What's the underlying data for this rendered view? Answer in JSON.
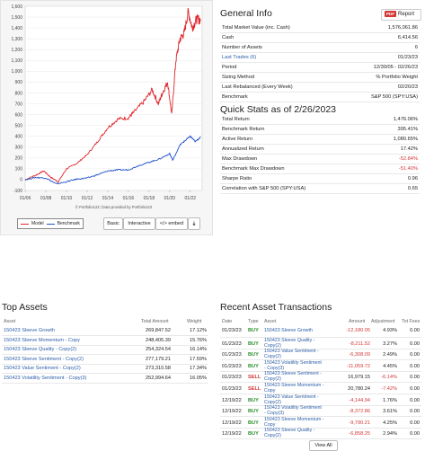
{
  "chart_data": {
    "type": "line",
    "x_ticks": [
      "01/06",
      "01/08",
      "01/10",
      "01/12",
      "01/14",
      "01/16",
      "01/18",
      "01/20",
      "01/22"
    ],
    "y_ticks": [
      "1,600",
      "1,500",
      "1,400",
      "1,300",
      "1,200",
      "1,100",
      "1,000",
      "900",
      "800",
      "700",
      "600",
      "500",
      "400",
      "300",
      "200",
      "100",
      "0",
      "-100"
    ],
    "ylim": [
      -100,
      1600
    ],
    "xlim": [
      2005.99,
      2023.15
    ],
    "series": [
      {
        "name": "Model",
        "color": "#e0262b",
        "x": [
          2006.0,
          2007.0,
          2007.8,
          2008.5,
          2009.2,
          2010.0,
          2011.0,
          2012.0,
          2013.0,
          2014.0,
          2015.0,
          2016.0,
          2016.5,
          2017.5,
          2018.3,
          2018.9,
          2019.3,
          2019.8,
          2020.2,
          2020.6,
          2021.0,
          2021.4,
          2021.8,
          2022.2,
          2022.6,
          2023.0
        ],
        "y": [
          0,
          40,
          80,
          20,
          -20,
          100,
          150,
          230,
          350,
          480,
          560,
          570,
          620,
          720,
          830,
          700,
          800,
          900,
          600,
          1100,
          1300,
          1350,
          1550,
          1400,
          1480,
          1476
        ]
      },
      {
        "name": "Benchmark",
        "color": "#2150c8",
        "x": [
          2006.0,
          2007.0,
          2008.0,
          2009.0,
          2010.0,
          2011.0,
          2012.0,
          2013.0,
          2014.0,
          2015.0,
          2016.0,
          2017.0,
          2018.0,
          2019.0,
          2020.0,
          2020.3,
          2021.0,
          2021.5,
          2022.0,
          2022.5,
          2023.0
        ],
        "y": [
          0,
          20,
          15,
          -40,
          -20,
          5,
          15,
          45,
          80,
          90,
          90,
          130,
          160,
          190,
          240,
          180,
          320,
          360,
          400,
          350,
          395
        ]
      }
    ],
    "credits": "© Portfolio123 | Data provided by Portfolio123"
  },
  "chart_ui": {
    "legend_model": "Model",
    "legend_benchmark": "Benchmark",
    "btn_basic": "Basic",
    "btn_interactive": "Interactive",
    "btn_embed": "</> embed",
    "btn_download": "⤓"
  },
  "general": {
    "title": "General Info",
    "pdf_badge": "PDF",
    "pdf_label": "Report",
    "rows": [
      {
        "k": "Total Market Value (inc. Cash)",
        "v": "1,576,061.86"
      },
      {
        "k": "Cash",
        "v": "6,414.56"
      },
      {
        "k": "Number of Assets",
        "v": "6"
      },
      {
        "k": "Last Trades (6)",
        "v": "01/23/23",
        "link": true
      },
      {
        "k": "Period",
        "v": "12/30/05 - 02/26/23"
      },
      {
        "k": "Sizing Method",
        "v": "% Portfolio Weight"
      },
      {
        "k": "Last Rebalanced (Every Week)",
        "v": "02/20/23"
      },
      {
        "k": "Benchmark",
        "v": "S&P 500 (SPY:USA)"
      }
    ]
  },
  "quick": {
    "title": "Quick Stats as of 2/26/2023",
    "rows": [
      {
        "k": "Total Return",
        "v": "1,476.06%"
      },
      {
        "k": "Benchmark Return",
        "v": "395.41%"
      },
      {
        "k": "Active Return",
        "v": "1,080.65%"
      },
      {
        "k": "Annualized Return",
        "v": "17.42%"
      },
      {
        "k": "Max Drawdown",
        "v": "-52.84%",
        "neg": true
      },
      {
        "k": "Benchmark Max Drawdown",
        "v": "-51.40%",
        "neg": true
      },
      {
        "k": "Sharpe Ratio",
        "v": "0.96"
      },
      {
        "k": "Correlation with S&P 500 (SPY:USA)",
        "v": "0.65"
      }
    ]
  },
  "assets": {
    "title": "Top Assets",
    "headers": {
      "asset": "Asset",
      "amount": "Total Amount",
      "weight": "Weight"
    },
    "rows": [
      {
        "asset": "150423 Sleeve Growth",
        "amount": "269,847.52",
        "weight": "17.12%"
      },
      {
        "asset": "150423 Sleeve Momentum - Copy",
        "amount": "248,405.39",
        "weight": "15.76%"
      },
      {
        "asset": "150423 Sleeve Quality - Copy(2)",
        "amount": "254,324.54",
        "weight": "16.14%"
      },
      {
        "asset": "150423 Sleeve Sentiment - Copy(2)",
        "amount": "277,179.21",
        "weight": "17.59%"
      },
      {
        "asset": "150423 Value Sentiment - Copy(2)",
        "amount": "273,310.58",
        "weight": "17.34%"
      },
      {
        "asset": "150423 Volatility Sentiment - Copy(3)",
        "amount": "252,994.64",
        "weight": "16.05%"
      }
    ]
  },
  "txns": {
    "title": "Recent Asset Transactions",
    "headers": {
      "date": "Date",
      "type": "Type",
      "asset": "Asset",
      "amount": "Amount",
      "adjustment": "Adjustment",
      "fees": "Tot Fees"
    },
    "view_all": "View All",
    "rows": [
      {
        "date": "01/23/23",
        "type": "BUY",
        "asset": [
          "150423 Sleeve Growth"
        ],
        "amount": "-12,180.05",
        "adj": "4.93%",
        "fees": "0.00"
      },
      {
        "date": "01/23/23",
        "type": "BUY",
        "asset": [
          "150423 Sleeve Quality -",
          "Copy(2)"
        ],
        "amount": "-8,211.52",
        "adj": "3.27%",
        "fees": "0.00"
      },
      {
        "date": "01/23/23",
        "type": "BUY",
        "asset": [
          "150423 Value Sentiment -",
          "Copy(2)"
        ],
        "amount": "-6,308.09",
        "adj": "2.49%",
        "fees": "0.00"
      },
      {
        "date": "01/23/23",
        "type": "BUY",
        "asset": [
          "150423 Volatility Sentiment",
          "- Copy(3)"
        ],
        "amount": "-11,059.72",
        "adj": "4.45%",
        "fees": "0.00"
      },
      {
        "date": "01/23/23",
        "type": "SELL",
        "asset": [
          "150423 Sleeve Sentiment -",
          "Copy(2)"
        ],
        "amount": "16,979.15",
        "adj": "-6.14%",
        "fees": "0.00"
      },
      {
        "date": "01/23/23",
        "type": "SELL",
        "asset": [
          "150423 Sleeve Momentum -",
          "Copy"
        ],
        "amount": "20,780.24",
        "adj": "-7.42%",
        "fees": "0.00"
      },
      {
        "date": "12/19/22",
        "type": "BUY",
        "asset": [
          "150423 Value Sentiment -",
          "Copy(2)"
        ],
        "amount": "-4,144.94",
        "adj": "1.76%",
        "fees": "0.00"
      },
      {
        "date": "12/19/22",
        "type": "BUY",
        "asset": [
          "150423 Volatility Sentiment",
          "- Copy(3)"
        ],
        "amount": "-8,372.86",
        "adj": "3.61%",
        "fees": "0.00"
      },
      {
        "date": "12/19/22",
        "type": "BUY",
        "asset": [
          "150423 Sleeve Momentum -",
          "Copy"
        ],
        "amount": "-9,790.21",
        "adj": "4.25%",
        "fees": "0.00"
      },
      {
        "date": "12/19/22",
        "type": "BUY",
        "asset": [
          "150423 Sleeve Quality -",
          "Copy(2)"
        ],
        "amount": "-6,858.25",
        "adj": "2.94%",
        "fees": "0.00"
      }
    ]
  }
}
